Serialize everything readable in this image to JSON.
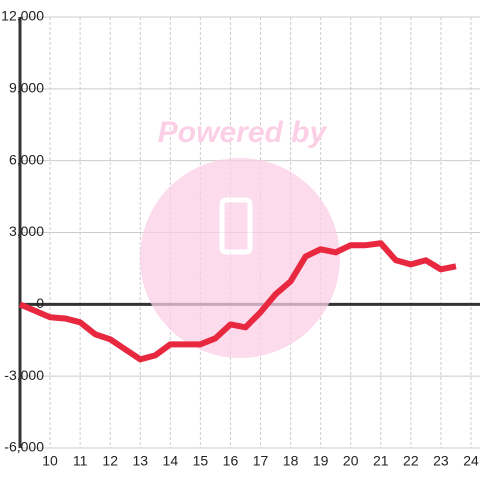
{
  "chart_data": {
    "type": "line",
    "watermark": "Powered by",
    "x": [
      9,
      10,
      10.5,
      11,
      11.5,
      12,
      12.5,
      13,
      13.5,
      14,
      14.5,
      15,
      15.5,
      16,
      16.5,
      17,
      17.5,
      18,
      18.5,
      19,
      19.5,
      20,
      20.5,
      21,
      21.5,
      22,
      22.5,
      23,
      23.5
    ],
    "series": [
      {
        "color": "#e8283f",
        "values": [
          0,
          -540,
          -590,
          -750,
          -1250,
          -1460,
          -1880,
          -2300,
          -2130,
          -1670,
          -1670,
          -1670,
          -1420,
          -840,
          -960,
          -330,
          420,
          960,
          2000,
          2300,
          2170,
          2470,
          2470,
          2550,
          1840,
          1670,
          1840,
          1460,
          1590
        ]
      }
    ],
    "xlim": [
      9,
      24.3
    ],
    "xticks": [
      10,
      11,
      12,
      13,
      14,
      15,
      16,
      17,
      18,
      19,
      20,
      21,
      22,
      23,
      24
    ],
    "ylim": [
      -6000,
      12000
    ],
    "yticks": [
      {
        "value": -6000,
        "label": "-6,000"
      },
      {
        "value": -3000,
        "label": "-3,000"
      },
      0,
      {
        "value": 3000,
        "label": "3,000"
      },
      {
        "value": 6000,
        "label": "6,000"
      },
      {
        "value": 9000,
        "label": "9,000"
      },
      {
        "value": 12000,
        "label": "12,000"
      }
    ],
    "grid": true
  }
}
